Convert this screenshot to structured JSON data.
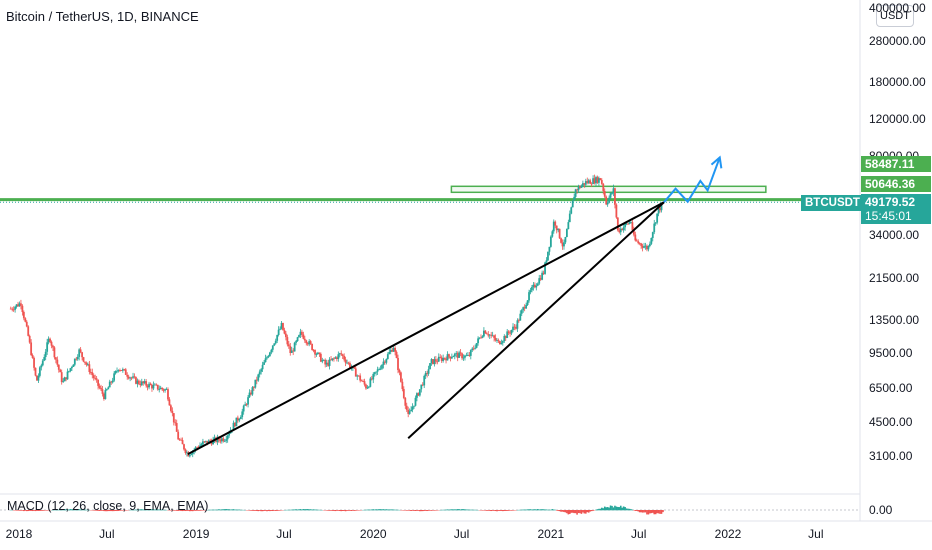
{
  "chart_data": {
    "type": "candlestick",
    "title": "Bitcoin / TetherUS, 1D, BINANCE",
    "symbol": "BTCUSDT",
    "currency_button": "USDT",
    "y_scale": "log",
    "y_ticks": [
      "400000.00",
      "280000.00",
      "180000.00",
      "120000.00",
      "80000.00",
      "34000.00",
      "21500.00",
      "13500.00",
      "9500.00",
      "6500.00",
      "4500.00",
      "3100.00"
    ],
    "x_ticks": [
      "2018",
      "Jul",
      "2019",
      "Jul",
      "2020",
      "Jul",
      "2021",
      "Jul",
      "2022",
      "Jul"
    ],
    "price_series": [
      {
        "date": "2017-12-15",
        "close": 15500
      },
      {
        "date": "2018-01-05",
        "close": 16500
      },
      {
        "date": "2018-01-20",
        "close": 11500
      },
      {
        "date": "2018-02-06",
        "close": 7000
      },
      {
        "date": "2018-03-05",
        "close": 11400
      },
      {
        "date": "2018-04-01",
        "close": 6900
      },
      {
        "date": "2018-05-05",
        "close": 9800
      },
      {
        "date": "2018-06-25",
        "close": 6000
      },
      {
        "date": "2018-07-25",
        "close": 8200
      },
      {
        "date": "2018-09-01",
        "close": 7000
      },
      {
        "date": "2018-11-01",
        "close": 6400
      },
      {
        "date": "2018-11-25",
        "close": 3800
      },
      {
        "date": "2018-12-15",
        "close": 3200
      },
      {
        "date": "2019-01-15",
        "close": 3600
      },
      {
        "date": "2019-03-01",
        "close": 3800
      },
      {
        "date": "2019-04-05",
        "close": 5000
      },
      {
        "date": "2019-05-15",
        "close": 8000
      },
      {
        "date": "2019-06-26",
        "close": 12900
      },
      {
        "date": "2019-07-15",
        "close": 9500
      },
      {
        "date": "2019-08-05",
        "close": 11900
      },
      {
        "date": "2019-09-25",
        "close": 8400
      },
      {
        "date": "2019-10-26",
        "close": 9500
      },
      {
        "date": "2019-12-18",
        "close": 6600
      },
      {
        "date": "2020-02-12",
        "close": 10300
      },
      {
        "date": "2020-03-13",
        "close": 4800
      },
      {
        "date": "2020-04-30",
        "close": 8700
      },
      {
        "date": "2020-06-15",
        "close": 9400
      },
      {
        "date": "2020-07-15",
        "close": 9200
      },
      {
        "date": "2020-08-17",
        "close": 12300
      },
      {
        "date": "2020-09-15",
        "close": 10700
      },
      {
        "date": "2020-10-21",
        "close": 12900
      },
      {
        "date": "2020-11-20",
        "close": 18600
      },
      {
        "date": "2020-12-17",
        "close": 23000
      },
      {
        "date": "2021-01-08",
        "close": 40500
      },
      {
        "date": "2021-01-27",
        "close": 30000
      },
      {
        "date": "2021-02-20",
        "close": 56000
      },
      {
        "date": "2021-03-13",
        "close": 61000
      },
      {
        "date": "2021-04-14",
        "close": 63500
      },
      {
        "date": "2021-04-25",
        "close": 49000
      },
      {
        "date": "2021-05-10",
        "close": 56000
      },
      {
        "date": "2021-05-19",
        "close": 36000
      },
      {
        "date": "2021-06-15",
        "close": 40000
      },
      {
        "date": "2021-06-22",
        "close": 32500
      },
      {
        "date": "2021-07-20",
        "close": 29800
      },
      {
        "date": "2021-08-10",
        "close": 45000
      },
      {
        "date": "2021-08-22",
        "close": 49179.52
      }
    ],
    "levels": [
      {
        "label": "58487.11",
        "price": 58487.11,
        "color": "#4caf50"
      },
      {
        "label": "50646.36",
        "price": 50646.36,
        "color": "#4caf50"
      }
    ],
    "resistance_zone": {
      "low": 55000,
      "high": 58487.11,
      "from": "2020-06-10",
      "to": "2022-03-20"
    },
    "current": {
      "price_label": "49179.52",
      "countdown": "15:45:01"
    },
    "trendlines": [
      {
        "from": {
          "date": "2018-12-15",
          "price": 3200
        },
        "to": {
          "date": "2021-08-22",
          "price": 49179.52
        }
      },
      {
        "from": {
          "date": "2020-03-13",
          "price": 3800
        },
        "to": {
          "date": "2021-08-22",
          "price": 49179.52
        }
      }
    ],
    "projection": [
      {
        "date": "2021-08-22",
        "price": 49179.52
      },
      {
        "date": "2021-09-15",
        "price": 57000
      },
      {
        "date": "2021-10-10",
        "price": 49500
      },
      {
        "date": "2021-11-05",
        "price": 62000
      },
      {
        "date": "2021-11-20",
        "price": 56000
      },
      {
        "date": "2021-12-15",
        "price": 80000
      }
    ],
    "indicator": {
      "label": "MACD (12, 26, close, 9, EMA, EMA)",
      "zero_label": "0.00"
    }
  }
}
